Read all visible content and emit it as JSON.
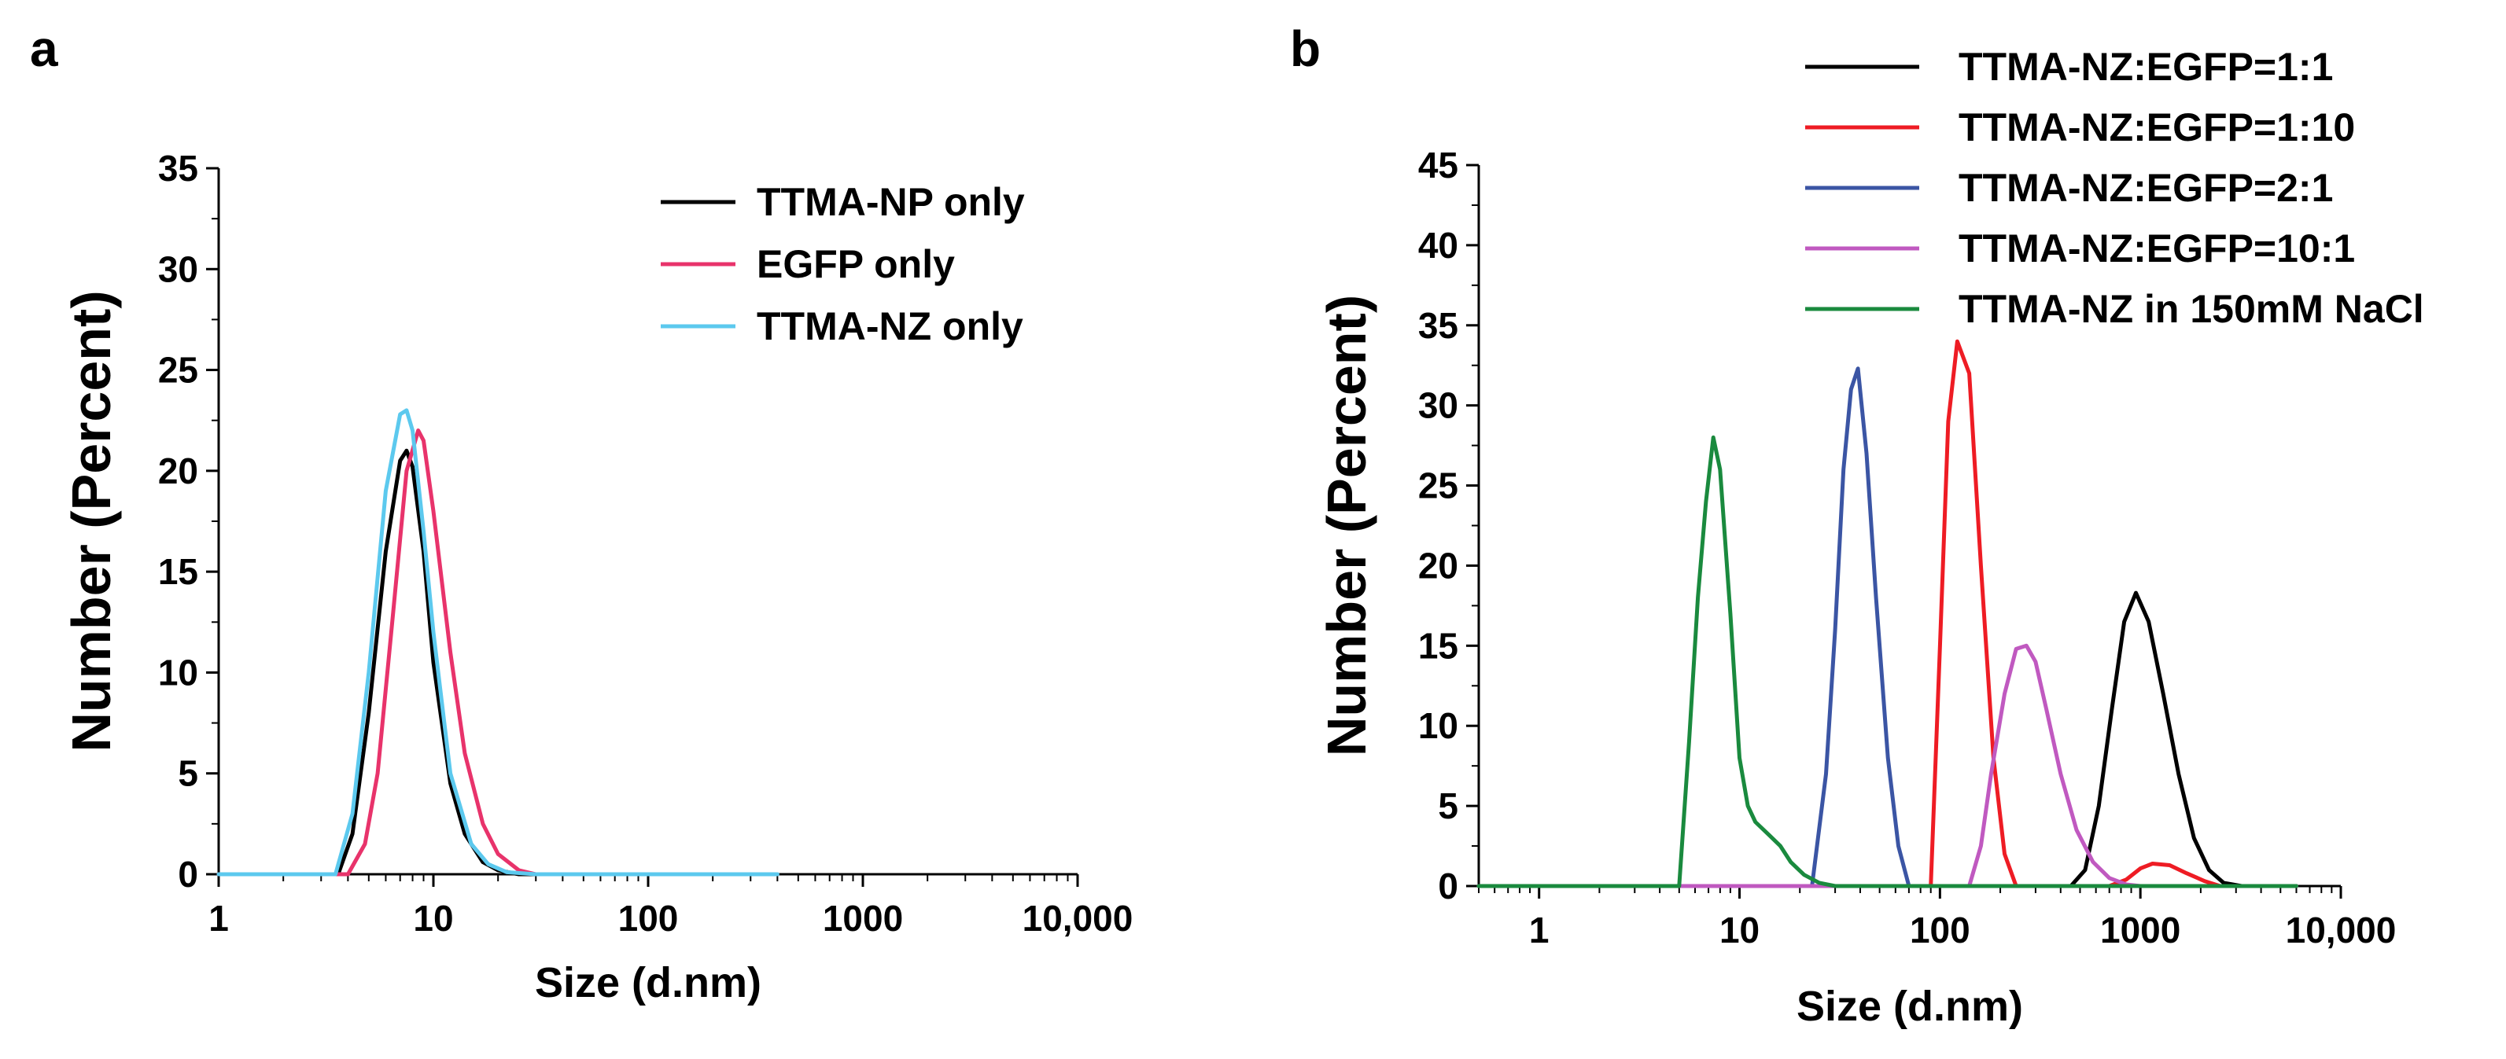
{
  "chart_data": [
    {
      "panel": "a",
      "type": "line",
      "xscale": "log",
      "xlabel": "Size (d.nm)",
      "ylabel": "Number (Percent)",
      "xlim": [
        1,
        10000
      ],
      "ylim": [
        0,
        35
      ],
      "xticks": [
        {
          "value": 1,
          "label": "1"
        },
        {
          "value": 10,
          "label": "10"
        },
        {
          "value": 100,
          "label": "100"
        },
        {
          "value": 1000,
          "label": "1000"
        },
        {
          "value": 10000,
          "label": "10,000"
        }
      ],
      "yticks": [
        0,
        5,
        10,
        15,
        20,
        25,
        30,
        35
      ],
      "legend_position": "top-right",
      "series": [
        {
          "name": "TTMA-NP only",
          "color": "#000000",
          "x": [
            1,
            3.6,
            4.2,
            5,
            6,
            7,
            7.5,
            8,
            9,
            10,
            12,
            14,
            17,
            20,
            25,
            30,
            40
          ],
          "y": [
            0,
            0,
            2,
            8,
            16,
            20.5,
            21,
            20.2,
            16,
            10.5,
            4.5,
            2,
            0.6,
            0.2,
            0,
            0,
            0
          ]
        },
        {
          "name": "EGFP only",
          "color": "#e8336b",
          "x": [
            1,
            4,
            4.8,
            5.5,
            6.5,
            7.5,
            8.5,
            9,
            10,
            12,
            14,
            17,
            20,
            25,
            30,
            40
          ],
          "y": [
            0,
            0,
            1.5,
            5,
            13,
            20,
            22,
            21.5,
            18,
            11,
            6,
            2.5,
            1,
            0.2,
            0,
            0
          ]
        },
        {
          "name": "TTMA-NZ only",
          "color": "#5cc9ee",
          "x": [
            1,
            3.5,
            4.2,
            5,
            6,
            7,
            7.5,
            8,
            9,
            10,
            12,
            15,
            18,
            22,
            30,
            400
          ],
          "y": [
            0,
            0,
            3,
            10,
            19,
            22.8,
            23,
            22,
            17,
            12,
            5,
            1.5,
            0.5,
            0.1,
            0,
            0
          ]
        }
      ]
    },
    {
      "panel": "b",
      "type": "line",
      "xscale": "log",
      "xlabel": "Size (d.nm)",
      "ylabel": "Number (Percent)",
      "xlim": [
        0.5,
        10000
      ],
      "ylim": [
        0,
        45
      ],
      "xticks": [
        {
          "value": 1,
          "label": "1"
        },
        {
          "value": 10,
          "label": "10"
        },
        {
          "value": 100,
          "label": "100"
        },
        {
          "value": 1000,
          "label": "1000"
        },
        {
          "value": 10000,
          "label": "10,000"
        }
      ],
      "yticks": [
        0,
        5,
        10,
        15,
        20,
        25,
        30,
        35,
        40,
        45
      ],
      "legend_position": "top-right",
      "series": [
        {
          "name": "TTMA-NZ:EGFP=1:1",
          "color": "#000000",
          "x": [
            0.5,
            450,
            530,
            620,
            720,
            830,
            950,
            1100,
            1300,
            1550,
            1850,
            2200,
            2600,
            3200,
            6000
          ],
          "y": [
            0,
            0,
            1,
            5,
            11,
            16.5,
            18.3,
            16.5,
            12,
            7,
            3,
            1,
            0.2,
            0,
            0
          ]
        },
        {
          "name": "TTMA-NZ:EGFP=1:10",
          "color": "#ee1c24",
          "x": [
            0.5,
            90,
            100,
            110,
            122,
            140,
            160,
            185,
            210,
            240,
            700,
            850,
            1000,
            1150,
            1400,
            1700,
            2100,
            2500,
            6000
          ],
          "y": [
            0,
            0,
            15,
            29,
            34,
            32,
            20,
            8,
            2,
            0,
            0,
            0.4,
            1.1,
            1.4,
            1.3,
            0.8,
            0.3,
            0,
            0
          ]
        },
        {
          "name": "TTMA-NZ:EGFP=2:1",
          "color": "#3b55a4",
          "x": [
            0.5,
            23,
            27,
            30,
            33,
            36,
            39,
            43,
            48,
            55,
            62,
            70,
            6000
          ],
          "y": [
            0,
            0,
            7,
            16,
            26,
            31,
            32.3,
            27,
            18,
            8,
            2.5,
            0,
            0
          ]
        },
        {
          "name": "TTMA-NZ:EGFP=10:1",
          "color": "#c059c0",
          "x": [
            0.5,
            140,
            160,
            180,
            210,
            240,
            270,
            300,
            340,
            400,
            480,
            580,
            700,
            850,
            1000,
            6000
          ],
          "y": [
            0,
            0,
            2.5,
            7,
            12,
            14.8,
            15,
            14,
            11,
            7,
            3.5,
            1.5,
            0.5,
            0.1,
            0,
            0
          ]
        },
        {
          "name": "TTMA-NZ in 150mM NaCl",
          "color": "#1a8a3e",
          "x": [
            0.5,
            5,
            5.6,
            6.2,
            6.8,
            7.4,
            8,
            9,
            10,
            11,
            12,
            14,
            16,
            18,
            21,
            25,
            30,
            6000
          ],
          "y": [
            0,
            0,
            9,
            18,
            24,
            28,
            26,
            17,
            8,
            5,
            4,
            3.2,
            2.5,
            1.5,
            0.7,
            0.2,
            0,
            0
          ]
        }
      ]
    }
  ]
}
